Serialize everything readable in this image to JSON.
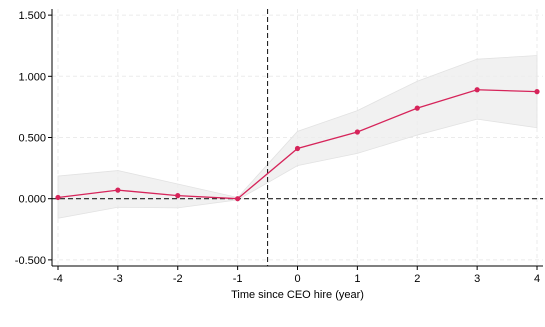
{
  "chart_data": {
    "type": "line",
    "title": "",
    "xlabel": "Time since CEO hire (year)",
    "ylabel": "",
    "xlim": [
      -4.1,
      4.1
    ],
    "ylim": [
      -0.55,
      1.55
    ],
    "x_ticks": [
      -4,
      -3,
      -2,
      -1,
      0,
      1,
      2,
      3,
      4
    ],
    "x_tick_labels": [
      "-4",
      "-3",
      "-2",
      "-1",
      "0",
      "1",
      "2",
      "3",
      "4"
    ],
    "y_ticks": [
      -0.5,
      0,
      0.5,
      1.0,
      1.5
    ],
    "y_tick_labels": [
      "-0.500",
      "0.000",
      "0.500",
      "1.000",
      "1.500"
    ],
    "grid": true,
    "reference_lines": {
      "vertical_x": -0.5,
      "horizontal_y": 0
    },
    "series": [
      {
        "x": [
          -4,
          -3,
          -2,
          -1,
          0,
          1,
          2,
          3,
          4
        ],
        "y": [
          0.01,
          0.07,
          0.025,
          0.0,
          0.41,
          0.545,
          0.74,
          0.89,
          0.875
        ],
        "ci_lower": [
          -0.16,
          -0.07,
          -0.075,
          -0.01,
          0.27,
          0.37,
          0.52,
          0.65,
          0.58
        ],
        "ci_upper": [
          0.185,
          0.23,
          0.12,
          0.01,
          0.55,
          0.72,
          0.96,
          1.14,
          1.17
        ],
        "color": "#d6245a",
        "band_color": "#ececec"
      }
    ]
  }
}
